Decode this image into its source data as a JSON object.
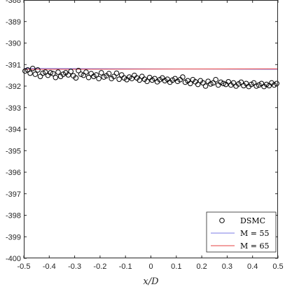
{
  "chart_data": {
    "type": "line",
    "title": "",
    "xlabel": "x/D",
    "ylabel": "",
    "xlim": [
      -0.5,
      0.5
    ],
    "ylim": [
      -400,
      -388
    ],
    "x_ticks": [
      -0.5,
      -0.4,
      -0.3,
      -0.2,
      -0.1,
      0,
      0.1,
      0.2,
      0.3,
      0.4,
      0.5
    ],
    "y_ticks": [
      -400,
      -399,
      -398,
      -397,
      -396,
      -395,
      -394,
      -393,
      -392,
      -391,
      -390,
      -389,
      -388
    ],
    "grid": false,
    "legend_position": "bottom-right",
    "series": [
      {
        "name": "DSMC",
        "kind": "scatter",
        "marker": "open-circle",
        "color": "#000000",
        "x": [
          -0.495,
          -0.485,
          -0.475,
          -0.465,
          -0.455,
          -0.445,
          -0.435,
          -0.425,
          -0.415,
          -0.405,
          -0.395,
          -0.385,
          -0.375,
          -0.365,
          -0.355,
          -0.345,
          -0.335,
          -0.325,
          -0.315,
          -0.305,
          -0.295,
          -0.285,
          -0.275,
          -0.265,
          -0.255,
          -0.245,
          -0.235,
          -0.225,
          -0.215,
          -0.205,
          -0.195,
          -0.185,
          -0.175,
          -0.165,
          -0.155,
          -0.145,
          -0.135,
          -0.125,
          -0.115,
          -0.105,
          -0.095,
          -0.085,
          -0.075,
          -0.065,
          -0.055,
          -0.045,
          -0.035,
          -0.025,
          -0.015,
          -0.005,
          0.005,
          0.015,
          0.025,
          0.035,
          0.045,
          0.055,
          0.065,
          0.075,
          0.085,
          0.095,
          0.105,
          0.115,
          0.125,
          0.135,
          0.145,
          0.155,
          0.165,
          0.175,
          0.185,
          0.195,
          0.205,
          0.215,
          0.225,
          0.235,
          0.245,
          0.255,
          0.265,
          0.275,
          0.285,
          0.295,
          0.305,
          0.315,
          0.325,
          0.335,
          0.345,
          0.355,
          0.365,
          0.375,
          0.385,
          0.395,
          0.405,
          0.415,
          0.425,
          0.435,
          0.445,
          0.455,
          0.465,
          0.475,
          0.485,
          0.495
        ],
        "y": [
          -391.3,
          -391.25,
          -391.4,
          -391.18,
          -391.45,
          -391.25,
          -391.55,
          -391.4,
          -391.35,
          -391.5,
          -391.38,
          -391.42,
          -391.6,
          -391.35,
          -391.55,
          -391.45,
          -391.38,
          -391.48,
          -391.32,
          -391.52,
          -391.62,
          -391.28,
          -391.45,
          -391.5,
          -391.35,
          -391.6,
          -391.42,
          -391.55,
          -391.48,
          -391.65,
          -391.38,
          -391.58,
          -391.52,
          -391.42,
          -391.65,
          -391.55,
          -391.4,
          -391.68,
          -391.48,
          -391.62,
          -391.7,
          -391.58,
          -391.65,
          -391.5,
          -391.62,
          -391.72,
          -391.55,
          -391.68,
          -391.78,
          -391.6,
          -391.72,
          -391.65,
          -391.8,
          -391.7,
          -391.62,
          -391.75,
          -391.68,
          -391.82,
          -391.72,
          -391.65,
          -391.78,
          -391.7,
          -391.58,
          -391.82,
          -391.75,
          -391.88,
          -391.7,
          -391.8,
          -391.92,
          -391.75,
          -391.85,
          -392.0,
          -391.78,
          -391.9,
          -391.85,
          -391.7,
          -391.95,
          -391.82,
          -391.88,
          -391.92,
          -391.8,
          -391.95,
          -391.85,
          -392.0,
          -391.9,
          -391.82,
          -391.98,
          -391.88,
          -392.02,
          -391.92,
          -391.85,
          -392.0,
          -391.95,
          -391.88,
          -392.02,
          -391.92,
          -391.98,
          -391.85,
          -391.95,
          -391.88
        ]
      },
      {
        "name": "M = 55",
        "kind": "line",
        "color": "#7b7be6",
        "x": [
          -0.5,
          0.5
        ],
        "y": [
          -391.18,
          -391.22
        ]
      },
      {
        "name": "M = 65",
        "kind": "line",
        "color": "#e64040",
        "x": [
          -0.5,
          0.5
        ],
        "y": [
          -391.22,
          -391.2
        ]
      }
    ]
  }
}
